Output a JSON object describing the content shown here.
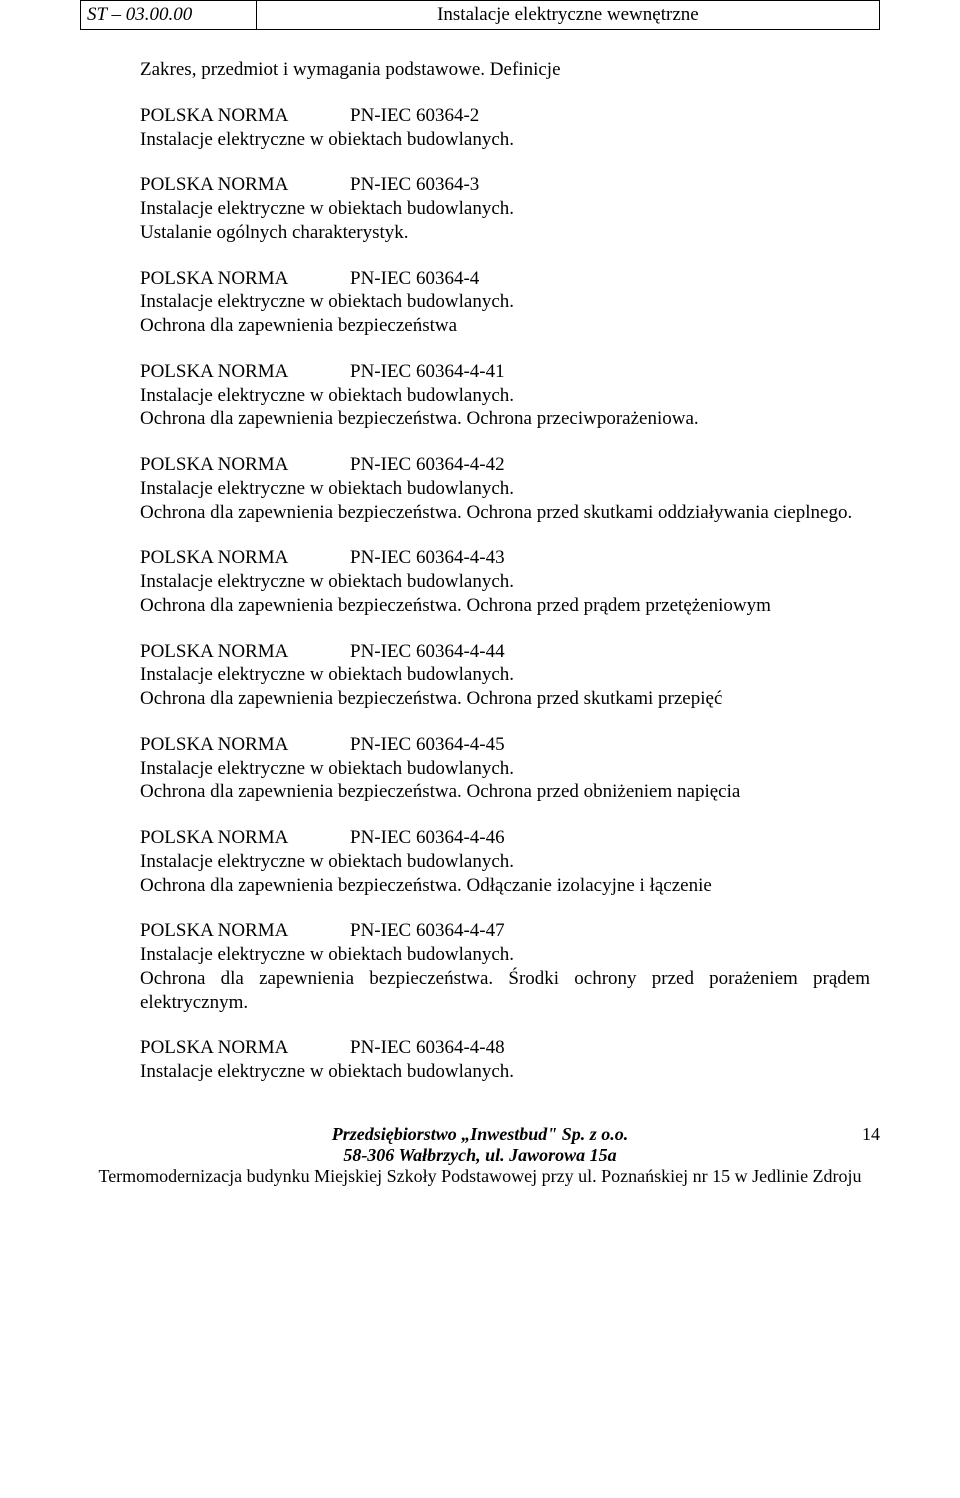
{
  "header": {
    "code": "ST – 03.00.00",
    "title": "Instalacje  elektryczne  wewnętrzne"
  },
  "intro": "Zakres, przedmiot i wymagania podstawowe. Definicje",
  "norms": [
    {
      "org": "POLSKA NORMA",
      "code": "PN-IEC 60364-2",
      "line2": "Instalacje elektryczne w obiektach budowlanych.",
      "line3": ""
    },
    {
      "org": "POLSKA NORMA",
      "code": "PN-IEC 60364-3",
      "line2": "Instalacje elektryczne w obiektach budowlanych.",
      "line3": "Ustalanie ogólnych charakterystyk."
    },
    {
      "org": "POLSKA NORMA",
      "code": "PN-IEC 60364-4",
      "line2": "Instalacje elektryczne w obiektach budowlanych.",
      "line3": "Ochrona dla zapewnienia bezpieczeństwa"
    },
    {
      "org": "POLSKA NORMA",
      "code": "PN-IEC 60364-4-41",
      "line2": "Instalacje elektryczne w obiektach budowlanych.",
      "line3": "Ochrona dla zapewnienia bezpieczeństwa. Ochrona przeciwporażeniowa."
    },
    {
      "org": "POLSKA NORMA",
      "code": "PN-IEC 60364-4-42",
      "line2": "Instalacje elektryczne w obiektach budowlanych.",
      "line3": "Ochrona dla zapewnienia bezpieczeństwa. Ochrona przed skutkami oddziaływania cieplnego."
    },
    {
      "org": "POLSKA NORMA",
      "code": "PN-IEC 60364-4-43",
      "line2": "Instalacje elektryczne w obiektach budowlanych.",
      "line3": "Ochrona dla zapewnienia bezpieczeństwa. Ochrona przed prądem przetężeniowym"
    },
    {
      "org": "POLSKA NORMA",
      "code": "PN-IEC 60364-4-44",
      "line2": "Instalacje elektryczne w obiektach budowlanych.",
      "line3": "Ochrona dla zapewnienia bezpieczeństwa. Ochrona przed skutkami przepięć"
    },
    {
      "org": "POLSKA NORMA",
      "code": "PN-IEC 60364-4-45",
      "line2": "Instalacje elektryczne w obiektach budowlanych.",
      "line3": "Ochrona dla zapewnienia bezpieczeństwa. Ochrona przed obniżeniem napięcia"
    },
    {
      "org": "POLSKA NORMA",
      "code": "PN-IEC 60364-4-46",
      "line2": "Instalacje elektryczne w obiektach budowlanych.",
      "line3": "Ochrona dla zapewnienia bezpieczeństwa. Odłączanie izolacyjne i łączenie"
    },
    {
      "org": "POLSKA NORMA",
      "code": "PN-IEC 60364-4-47",
      "line2": "Instalacje elektryczne w obiektach budowlanych.",
      "line3": "Ochrona dla zapewnienia bezpieczeństwa. Środki ochrony przed porażeniem prądem elektrycznym."
    },
    {
      "org": "POLSKA NORMA",
      "code": "PN-IEC 60364-4-48",
      "line2": "Instalacje elektryczne w obiektach budowlanych.",
      "line3": ""
    }
  ],
  "footer": {
    "company": "Przedsiębiorstwo „Inwestbud\" Sp. z o.o.",
    "address": "58-306 Wałbrzych, ul. Jaworowa 15a",
    "project": "Termomodernizacja budynku Miejskiej Szkoły Podstawowej  przy ul. Poznańskiej nr 15 w Jedlinie Zdroju",
    "page": "14"
  }
}
